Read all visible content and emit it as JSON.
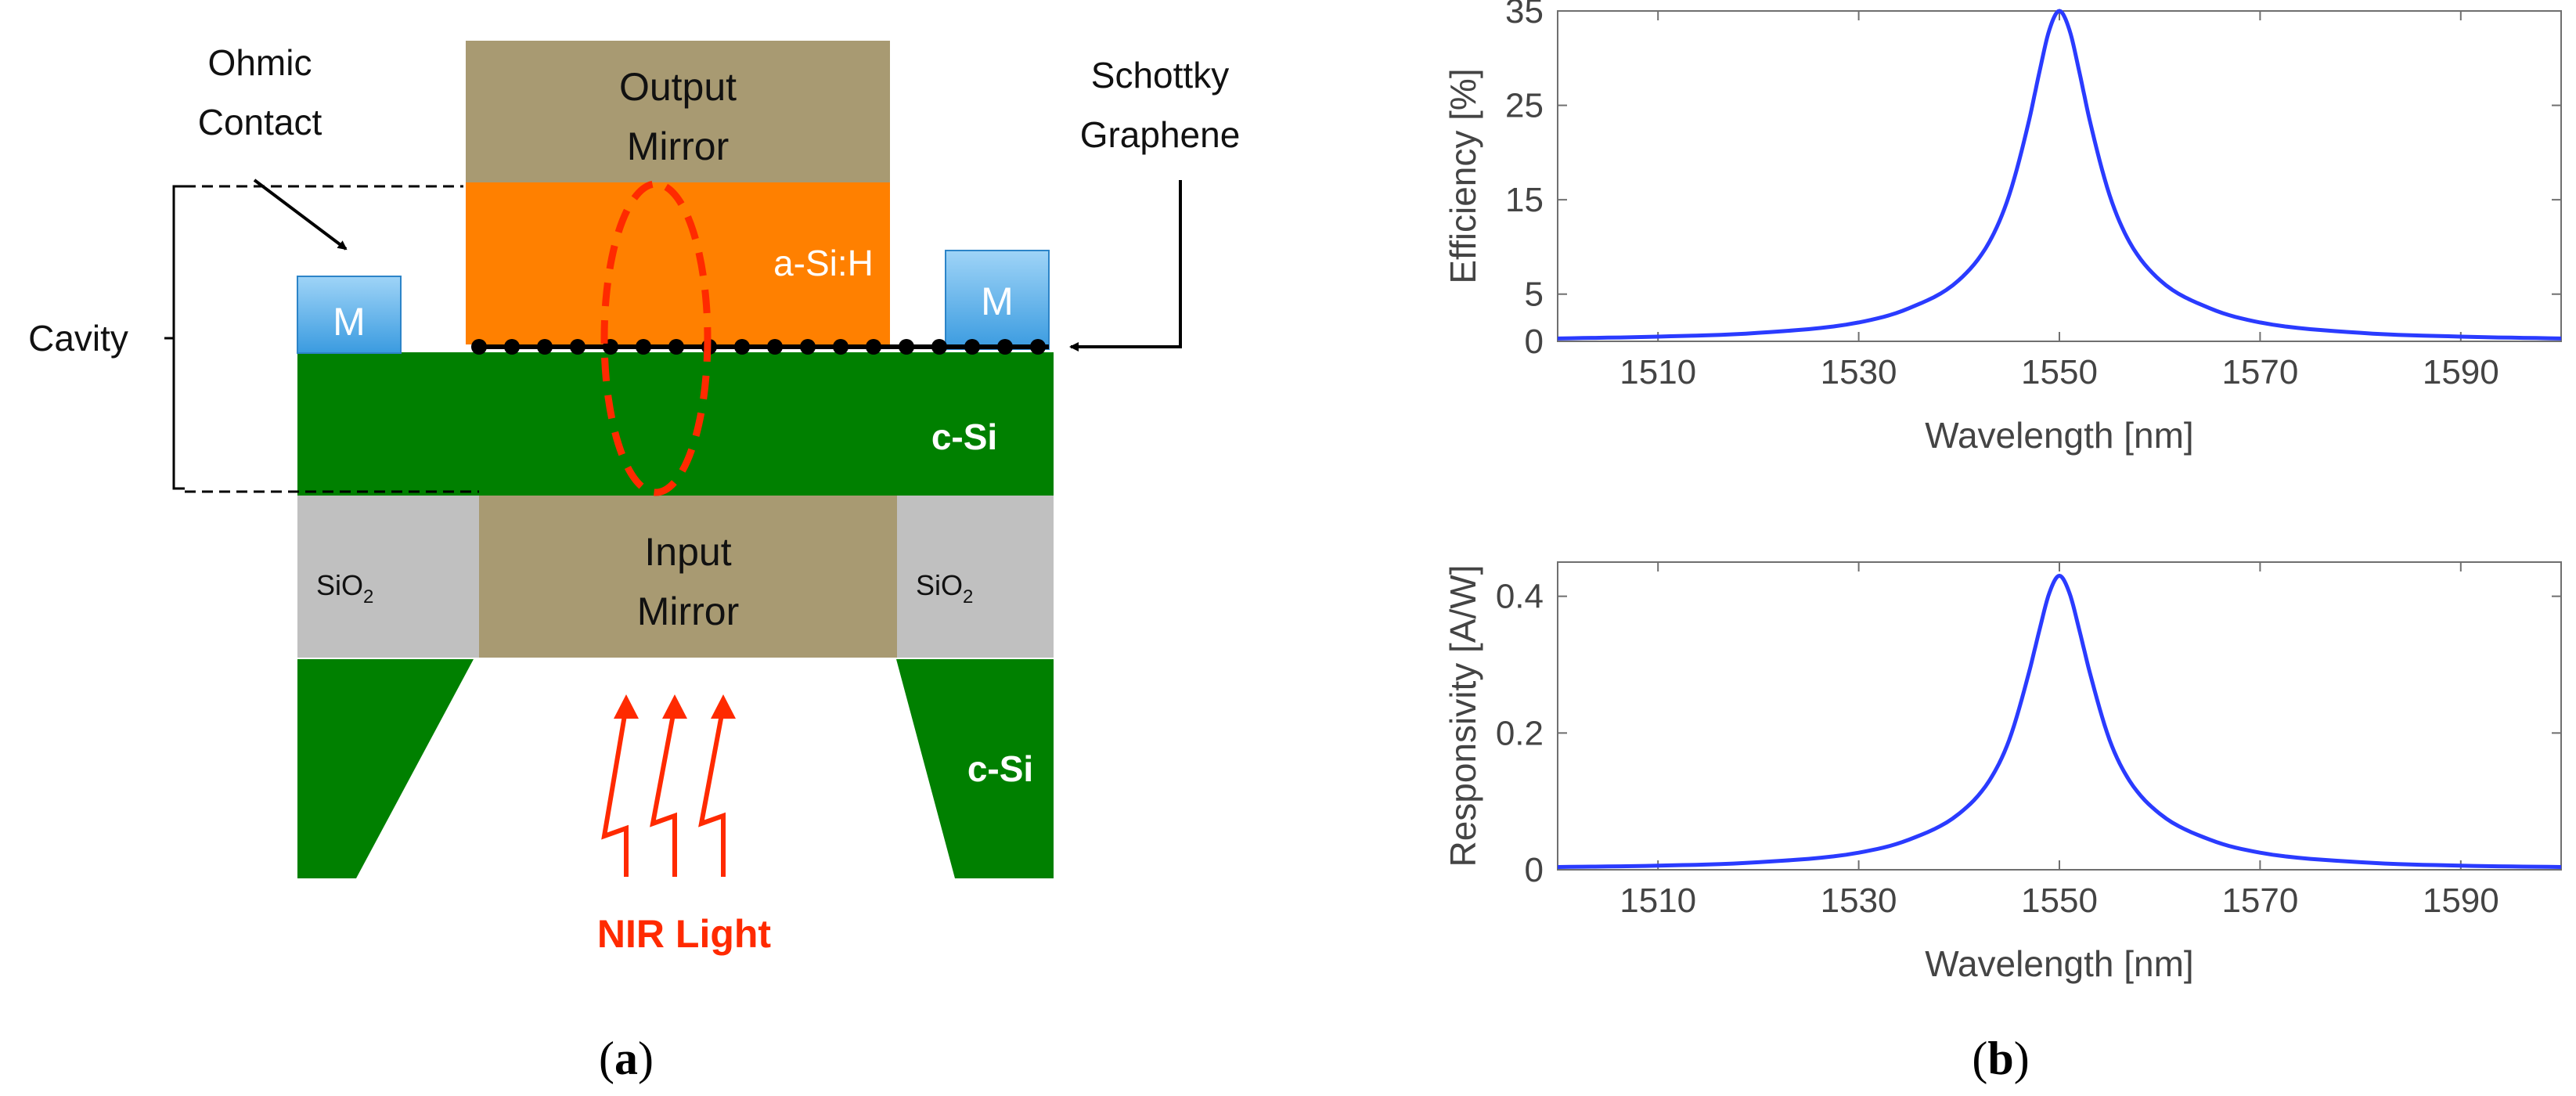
{
  "panel_a": {
    "label_open": "(",
    "label_letter": "a",
    "label_close": ")",
    "output_mirror": [
      "Output",
      "Mirror"
    ],
    "input_mirror": [
      "Input",
      "Mirror"
    ],
    "a_si_h": "a-Si:H",
    "c_si_top": "c-Si",
    "c_si_bottom": "c-Si",
    "m_label": "M",
    "sio2_base": "SiO",
    "sio2_sub": "2",
    "ohmic_contact": [
      "Ohmic",
      "Contact"
    ],
    "schottky_graphene": [
      "Schottky",
      "Graphene"
    ],
    "cavity": "Cavity",
    "nir_light": "NIR Light",
    "colors": {
      "mirror": "#a89a72",
      "a_si_h": "#ff8000",
      "c_si": "#008000",
      "sio2": "#c0c0c0",
      "metal": "#4aa8e8",
      "field_ellipse": "#ff2a00",
      "light": "#ff2a00"
    }
  },
  "panel_b": {
    "label_open": "(",
    "label_letter": "b",
    "label_close": ")"
  },
  "chart_data": [
    {
      "type": "line",
      "xlabel": "Wavelength [nm]",
      "ylabel": "Efficiency [%]",
      "xlim": [
        1500,
        1600
      ],
      "ylim": [
        0,
        35
      ],
      "xticks": [
        1510,
        1530,
        1550,
        1570,
        1590
      ],
      "yticks": [
        0,
        5,
        15,
        25,
        35
      ],
      "grid": false,
      "line_color": "#2a3bff",
      "x": [
        1500,
        1510,
        1520,
        1530,
        1535,
        1540,
        1543,
        1545,
        1547,
        1548,
        1549,
        1550,
        1551,
        1552,
        1553,
        1555,
        1557,
        1560,
        1565,
        1570,
        1580,
        1590,
        1600
      ],
      "y": [
        0.3,
        0.5,
        0.9,
        2.0,
        3.5,
        6.5,
        10.5,
        15.5,
        23.5,
        28.5,
        33.0,
        35.0,
        33.0,
        28.5,
        23.5,
        15.5,
        10.5,
        6.5,
        3.5,
        2.0,
        0.9,
        0.5,
        0.3
      ]
    },
    {
      "type": "line",
      "xlabel": "Wavelength [nm]",
      "ylabel": "Responsivity [A/W]",
      "xlim": [
        1500,
        1600
      ],
      "ylim": [
        0,
        0.45
      ],
      "xticks": [
        1510,
        1530,
        1550,
        1570,
        1590
      ],
      "yticks": [
        0,
        0.2,
        0.4
      ],
      "grid": false,
      "line_color": "#2a3bff",
      "x": [
        1500,
        1510,
        1520,
        1530,
        1535,
        1540,
        1543,
        1545,
        1547,
        1548,
        1549,
        1550,
        1551,
        1552,
        1553,
        1555,
        1557,
        1560,
        1565,
        1570,
        1580,
        1590,
        1600
      ],
      "y": [
        0.004,
        0.006,
        0.011,
        0.025,
        0.044,
        0.082,
        0.13,
        0.19,
        0.29,
        0.35,
        0.405,
        0.43,
        0.405,
        0.35,
        0.29,
        0.19,
        0.13,
        0.082,
        0.044,
        0.025,
        0.011,
        0.006,
        0.004
      ]
    }
  ]
}
